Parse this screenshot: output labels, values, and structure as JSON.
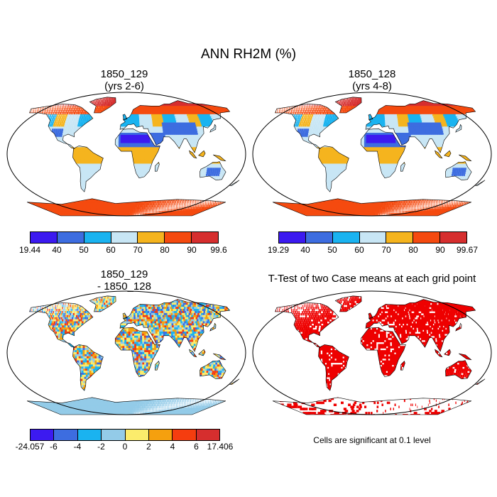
{
  "figure": {
    "title": "ANN RH2M (%)",
    "panels": [
      {
        "title_line1": "1850_129",
        "title_line2": "(yrs 2-6)",
        "colorbar_labels": [
          "19.44",
          "40",
          "50",
          "60",
          "70",
          "80",
          "90",
          "99.6"
        ],
        "colorbar_colors": [
          "#3c1af0",
          "#3d6de0",
          "#1ab3f0",
          "#c8e6f5",
          "#f5b41e",
          "#f54a0f",
          "#d62e2e"
        ]
      },
      {
        "title_line1": "1850_128",
        "title_line2": "(yrs 4-8)",
        "colorbar_labels": [
          "19.29",
          "40",
          "50",
          "60",
          "70",
          "80",
          "90",
          "99.67"
        ],
        "colorbar_colors": [
          "#3c1af0",
          "#3d6de0",
          "#1ab3f0",
          "#c8e6f5",
          "#f5b41e",
          "#f54a0f",
          "#d62e2e"
        ]
      },
      {
        "title_line1": "1850_129",
        "title_line2": "- 1850_128",
        "colorbar_labels": [
          "-24.057",
          "-6",
          "-4",
          "-2",
          "0",
          "2",
          "4",
          "6",
          "17.406"
        ],
        "colorbar_colors": [
          "#3c1af0",
          "#3d6de0",
          "#1ab3f0",
          "#93cbe8",
          "#fbec6c",
          "#f5a00e",
          "#f53d0f",
          "#d62e2e"
        ]
      },
      {
        "title_line1": "T-Test of two Case means at each grid point",
        "note": "Cells are significant at 0.1 level",
        "significant_color": "#ee0000"
      }
    ]
  }
}
